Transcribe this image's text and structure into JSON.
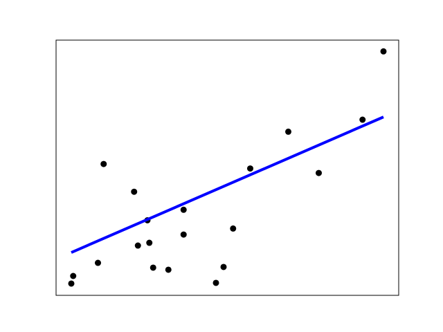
{
  "chart_data": {
    "type": "scatter",
    "title": "",
    "xlabel": "",
    "ylabel": "",
    "xlim": [
      -0.08,
      0.1
    ],
    "ylim": [
      20,
      360
    ],
    "ticks_visible": false,
    "grid": false,
    "points": {
      "color": "#000000",
      "x": [
        -0.072,
        -0.071,
        -0.058,
        -0.055,
        -0.039,
        -0.037,
        -0.032,
        -0.031,
        -0.029,
        -0.021,
        -0.013,
        -0.013,
        0.004,
        0.008,
        0.013,
        0.022,
        0.042,
        0.058,
        0.081,
        0.092
      ],
      "y": [
        35.7,
        45.8,
        63.3,
        195,
        158,
        86.3,
        120,
        90,
        56.9,
        54.1,
        134,
        101,
        36.6,
        57.8,
        109,
        189,
        238,
        183,
        254,
        345
      ]
    },
    "fit_line": {
      "color": "#0000ff",
      "x": [
        -0.072,
        0.092
      ],
      "y": [
        77.1,
        257.6
      ]
    }
  }
}
